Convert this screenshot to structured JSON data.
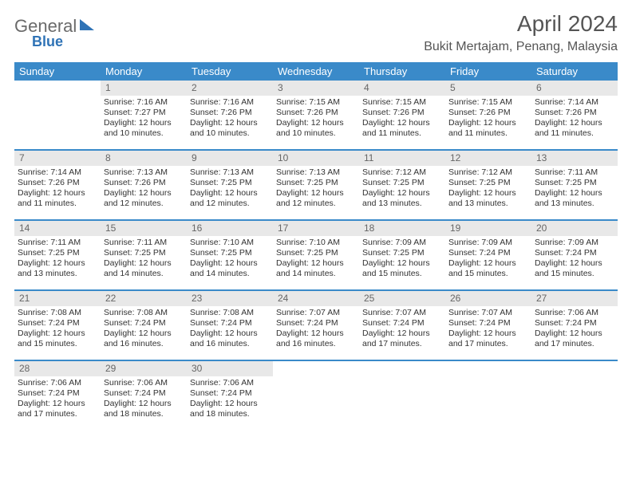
{
  "logo": {
    "word1": "General",
    "word2": "Blue"
  },
  "title": "April 2024",
  "location": "Bukit Mertajam, Penang, Malaysia",
  "day_headers": [
    "Sunday",
    "Monday",
    "Tuesday",
    "Wednesday",
    "Thursday",
    "Friday",
    "Saturday"
  ],
  "colors": {
    "header_bg": "#3a8ac9",
    "week_divider": "#3a8ac9",
    "daynum_bg": "#e8e8e8",
    "title_text": "#555555",
    "body_text": "#333333",
    "background": "#ffffff"
  },
  "weeks": [
    [
      null,
      {
        "n": "1",
        "sr": "Sunrise: 7:16 AM",
        "ss": "Sunset: 7:27 PM",
        "d1": "Daylight: 12 hours",
        "d2": "and 10 minutes."
      },
      {
        "n": "2",
        "sr": "Sunrise: 7:16 AM",
        "ss": "Sunset: 7:26 PM",
        "d1": "Daylight: 12 hours",
        "d2": "and 10 minutes."
      },
      {
        "n": "3",
        "sr": "Sunrise: 7:15 AM",
        "ss": "Sunset: 7:26 PM",
        "d1": "Daylight: 12 hours",
        "d2": "and 10 minutes."
      },
      {
        "n": "4",
        "sr": "Sunrise: 7:15 AM",
        "ss": "Sunset: 7:26 PM",
        "d1": "Daylight: 12 hours",
        "d2": "and 11 minutes."
      },
      {
        "n": "5",
        "sr": "Sunrise: 7:15 AM",
        "ss": "Sunset: 7:26 PM",
        "d1": "Daylight: 12 hours",
        "d2": "and 11 minutes."
      },
      {
        "n": "6",
        "sr": "Sunrise: 7:14 AM",
        "ss": "Sunset: 7:26 PM",
        "d1": "Daylight: 12 hours",
        "d2": "and 11 minutes."
      }
    ],
    [
      {
        "n": "7",
        "sr": "Sunrise: 7:14 AM",
        "ss": "Sunset: 7:26 PM",
        "d1": "Daylight: 12 hours",
        "d2": "and 11 minutes."
      },
      {
        "n": "8",
        "sr": "Sunrise: 7:13 AM",
        "ss": "Sunset: 7:26 PM",
        "d1": "Daylight: 12 hours",
        "d2": "and 12 minutes."
      },
      {
        "n": "9",
        "sr": "Sunrise: 7:13 AM",
        "ss": "Sunset: 7:25 PM",
        "d1": "Daylight: 12 hours",
        "d2": "and 12 minutes."
      },
      {
        "n": "10",
        "sr": "Sunrise: 7:13 AM",
        "ss": "Sunset: 7:25 PM",
        "d1": "Daylight: 12 hours",
        "d2": "and 12 minutes."
      },
      {
        "n": "11",
        "sr": "Sunrise: 7:12 AM",
        "ss": "Sunset: 7:25 PM",
        "d1": "Daylight: 12 hours",
        "d2": "and 13 minutes."
      },
      {
        "n": "12",
        "sr": "Sunrise: 7:12 AM",
        "ss": "Sunset: 7:25 PM",
        "d1": "Daylight: 12 hours",
        "d2": "and 13 minutes."
      },
      {
        "n": "13",
        "sr": "Sunrise: 7:11 AM",
        "ss": "Sunset: 7:25 PM",
        "d1": "Daylight: 12 hours",
        "d2": "and 13 minutes."
      }
    ],
    [
      {
        "n": "14",
        "sr": "Sunrise: 7:11 AM",
        "ss": "Sunset: 7:25 PM",
        "d1": "Daylight: 12 hours",
        "d2": "and 13 minutes."
      },
      {
        "n": "15",
        "sr": "Sunrise: 7:11 AM",
        "ss": "Sunset: 7:25 PM",
        "d1": "Daylight: 12 hours",
        "d2": "and 14 minutes."
      },
      {
        "n": "16",
        "sr": "Sunrise: 7:10 AM",
        "ss": "Sunset: 7:25 PM",
        "d1": "Daylight: 12 hours",
        "d2": "and 14 minutes."
      },
      {
        "n": "17",
        "sr": "Sunrise: 7:10 AM",
        "ss": "Sunset: 7:25 PM",
        "d1": "Daylight: 12 hours",
        "d2": "and 14 minutes."
      },
      {
        "n": "18",
        "sr": "Sunrise: 7:09 AM",
        "ss": "Sunset: 7:25 PM",
        "d1": "Daylight: 12 hours",
        "d2": "and 15 minutes."
      },
      {
        "n": "19",
        "sr": "Sunrise: 7:09 AM",
        "ss": "Sunset: 7:24 PM",
        "d1": "Daylight: 12 hours",
        "d2": "and 15 minutes."
      },
      {
        "n": "20",
        "sr": "Sunrise: 7:09 AM",
        "ss": "Sunset: 7:24 PM",
        "d1": "Daylight: 12 hours",
        "d2": "and 15 minutes."
      }
    ],
    [
      {
        "n": "21",
        "sr": "Sunrise: 7:08 AM",
        "ss": "Sunset: 7:24 PM",
        "d1": "Daylight: 12 hours",
        "d2": "and 15 minutes."
      },
      {
        "n": "22",
        "sr": "Sunrise: 7:08 AM",
        "ss": "Sunset: 7:24 PM",
        "d1": "Daylight: 12 hours",
        "d2": "and 16 minutes."
      },
      {
        "n": "23",
        "sr": "Sunrise: 7:08 AM",
        "ss": "Sunset: 7:24 PM",
        "d1": "Daylight: 12 hours",
        "d2": "and 16 minutes."
      },
      {
        "n": "24",
        "sr": "Sunrise: 7:07 AM",
        "ss": "Sunset: 7:24 PM",
        "d1": "Daylight: 12 hours",
        "d2": "and 16 minutes."
      },
      {
        "n": "25",
        "sr": "Sunrise: 7:07 AM",
        "ss": "Sunset: 7:24 PM",
        "d1": "Daylight: 12 hours",
        "d2": "and 17 minutes."
      },
      {
        "n": "26",
        "sr": "Sunrise: 7:07 AM",
        "ss": "Sunset: 7:24 PM",
        "d1": "Daylight: 12 hours",
        "d2": "and 17 minutes."
      },
      {
        "n": "27",
        "sr": "Sunrise: 7:06 AM",
        "ss": "Sunset: 7:24 PM",
        "d1": "Daylight: 12 hours",
        "d2": "and 17 minutes."
      }
    ],
    [
      {
        "n": "28",
        "sr": "Sunrise: 7:06 AM",
        "ss": "Sunset: 7:24 PM",
        "d1": "Daylight: 12 hours",
        "d2": "and 17 minutes."
      },
      {
        "n": "29",
        "sr": "Sunrise: 7:06 AM",
        "ss": "Sunset: 7:24 PM",
        "d1": "Daylight: 12 hours",
        "d2": "and 18 minutes."
      },
      {
        "n": "30",
        "sr": "Sunrise: 7:06 AM",
        "ss": "Sunset: 7:24 PM",
        "d1": "Daylight: 12 hours",
        "d2": "and 18 minutes."
      },
      null,
      null,
      null,
      null
    ]
  ]
}
